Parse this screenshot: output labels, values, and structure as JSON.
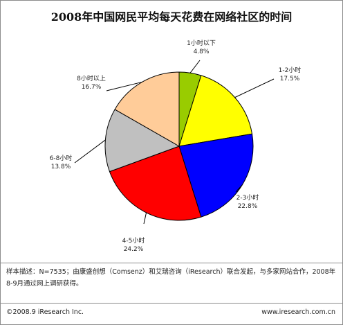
{
  "chart_data": {
    "type": "pie",
    "title": "2008年中国网民平均每天花费在网络社区的时间",
    "slices": [
      {
        "label": "1小时以下",
        "value": 4.8,
        "value_label": "4.8%",
        "color": "#99cc00"
      },
      {
        "label": "1-2小时",
        "value": 17.5,
        "value_label": "17.5%",
        "color": "#ffff00"
      },
      {
        "label": "2-3小时",
        "value": 22.8,
        "value_label": "22.8%",
        "color": "#0000ff"
      },
      {
        "label": "4-5小时",
        "value": 24.2,
        "value_label": "24.2%",
        "color": "#ff0000"
      },
      {
        "label": "6-8小时",
        "value": 13.8,
        "value_label": "13.8%",
        "color": "#c0c0c0"
      },
      {
        "label": "8小时以上",
        "value": 16.7,
        "value_label": "16.7%",
        "color": "#ffcc99"
      }
    ]
  },
  "footer": {
    "note": "样本描述：N=7535；由康盛创想（Comsenz）和艾瑞咨询（iResearch）联合发起，与多家网站合作，2008年8-9月通过网上调研获得。",
    "copyright": "©2008.9 iResearch Inc.",
    "website": "www.iresearch.com.cn"
  }
}
